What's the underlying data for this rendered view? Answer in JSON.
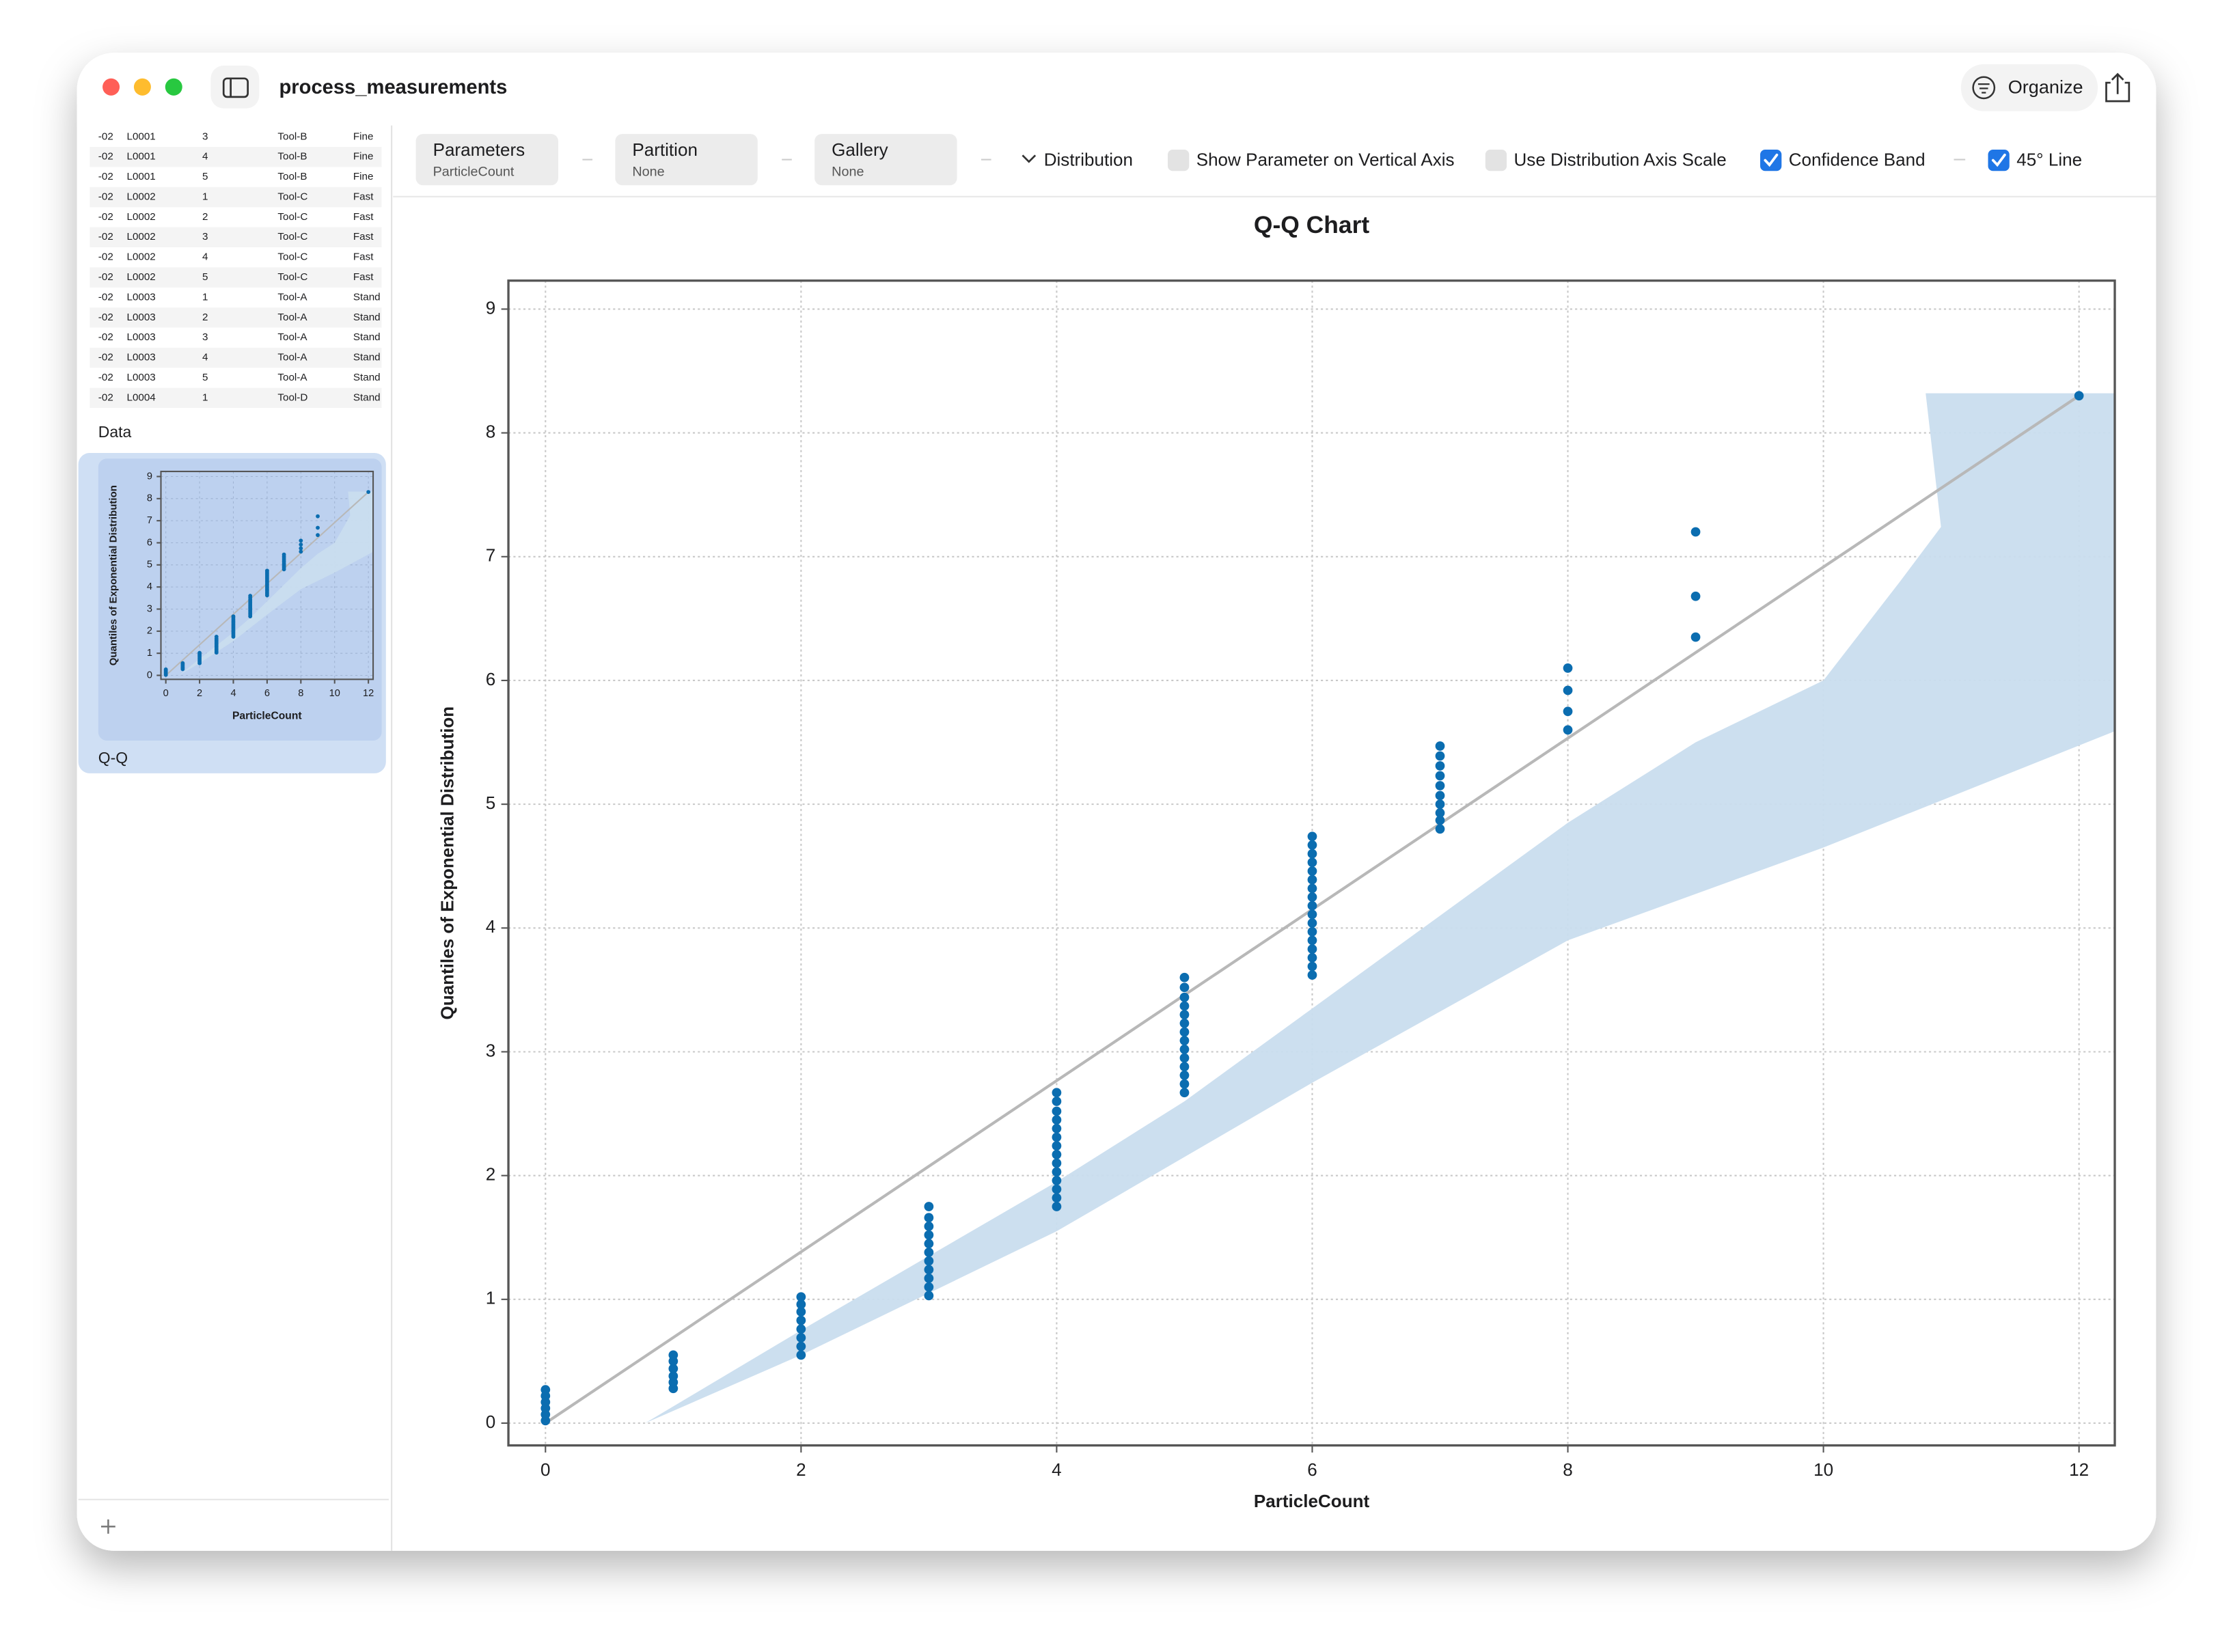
{
  "window": {
    "title": "process_measurements",
    "organize": "Organize"
  },
  "toolbar": {
    "popups": [
      {
        "label": "Parameters",
        "value": "ParticleCount"
      },
      {
        "label": "Partition",
        "value": "None"
      },
      {
        "label": "Gallery",
        "value": "None"
      }
    ],
    "distribution": "Distribution",
    "checkboxes": [
      {
        "label": "Show Parameter on Vertical Axis",
        "checked": false
      },
      {
        "label": "Use Distribution Axis Scale",
        "checked": false
      },
      {
        "label": "Confidence Band",
        "checked": true
      },
      {
        "label": "45° Line",
        "checked": true
      }
    ]
  },
  "sidebar": {
    "table": {
      "rows": [
        [
          "-02",
          "L0001",
          "3",
          "Tool-B",
          "Fine"
        ],
        [
          "-02",
          "L0001",
          "4",
          "Tool-B",
          "Fine"
        ],
        [
          "-02",
          "L0001",
          "5",
          "Tool-B",
          "Fine"
        ],
        [
          "-02",
          "L0002",
          "1",
          "Tool-C",
          "Fast"
        ],
        [
          "-02",
          "L0002",
          "2",
          "Tool-C",
          "Fast"
        ],
        [
          "-02",
          "L0002",
          "3",
          "Tool-C",
          "Fast"
        ],
        [
          "-02",
          "L0002",
          "4",
          "Tool-C",
          "Fast"
        ],
        [
          "-02",
          "L0002",
          "5",
          "Tool-C",
          "Fast"
        ],
        [
          "-02",
          "L0003",
          "1",
          "Tool-A",
          "Stand"
        ],
        [
          "-02",
          "L0003",
          "2",
          "Tool-A",
          "Stand"
        ],
        [
          "-02",
          "L0003",
          "3",
          "Tool-A",
          "Stand"
        ],
        [
          "-02",
          "L0003",
          "4",
          "Tool-A",
          "Stand"
        ],
        [
          "-02",
          "L0003",
          "5",
          "Tool-A",
          "Stand"
        ],
        [
          "-02",
          "L0004",
          "1",
          "Tool-D",
          "Stand"
        ]
      ]
    },
    "items": [
      {
        "label": "Data",
        "selected": false
      },
      {
        "label": "Q-Q",
        "selected": true
      }
    ]
  },
  "chart_data": {
    "type": "scatter",
    "title": "Q-Q Chart",
    "x_label": "ParticleCount",
    "y_label": "Quantiles of Exponential Distribution",
    "color": "#0b6db0",
    "x": [
      0,
      0,
      0,
      0,
      0,
      0,
      1,
      1,
      1,
      1,
      1,
      1,
      2,
      2,
      2,
      2,
      2,
      2,
      2,
      2,
      3,
      3,
      3,
      3,
      3,
      3,
      3,
      3,
      3,
      3,
      3,
      4,
      4,
      4,
      4,
      4,
      4,
      4,
      4,
      4,
      4,
      4,
      4,
      4,
      4,
      5,
      5,
      5,
      5,
      5,
      5,
      5,
      5,
      5,
      5,
      5,
      5,
      5,
      5,
      6,
      6,
      6,
      6,
      6,
      6,
      6,
      6,
      6,
      6,
      6,
      6,
      6,
      6,
      6,
      6,
      6,
      7,
      7,
      7,
      7,
      7,
      7,
      7,
      7,
      7,
      7,
      8,
      8,
      8,
      8,
      9,
      9,
      9,
      12
    ],
    "values": [
      0.02,
      0.07,
      0.12,
      0.17,
      0.22,
      0.27,
      0.28,
      0.33,
      0.38,
      0.44,
      0.5,
      0.55,
      0.55,
      0.62,
      0.69,
      0.76,
      0.83,
      0.9,
      0.96,
      1.02,
      1.03,
      1.1,
      1.17,
      1.24,
      1.31,
      1.38,
      1.45,
      1.52,
      1.59,
      1.66,
      1.75,
      1.75,
      1.82,
      1.89,
      1.96,
      2.03,
      2.1,
      2.17,
      2.24,
      2.31,
      2.38,
      2.45,
      2.52,
      2.6,
      2.67,
      2.67,
      2.74,
      2.81,
      2.88,
      2.95,
      3.02,
      3.09,
      3.16,
      3.23,
      3.3,
      3.37,
      3.44,
      3.52,
      3.6,
      3.62,
      3.69,
      3.76,
      3.83,
      3.9,
      3.97,
      4.04,
      4.11,
      4.18,
      4.25,
      4.32,
      4.39,
      4.46,
      4.53,
      4.6,
      4.67,
      4.74,
      4.8,
      4.87,
      4.93,
      5.0,
      5.07,
      5.15,
      5.23,
      5.31,
      5.39,
      5.47,
      5.6,
      5.75,
      5.92,
      6.1,
      6.35,
      6.68,
      7.2,
      8.3
    ],
    "xlim": [
      -0.29,
      12.28
    ],
    "ylim": [
      -0.18,
      9.23
    ],
    "xticks": [
      0,
      2,
      4,
      6,
      8,
      10,
      12
    ],
    "yticks": [
      0,
      1,
      2,
      3,
      4,
      5,
      6,
      7,
      8,
      9
    ],
    "grid": true,
    "reference_line": {
      "x": [
        0,
        12
      ],
      "y": [
        0,
        8.3
      ],
      "color": "#b8b8b8"
    },
    "confidence_band": {
      "color": "#c9ddee",
      "upper": {
        "x": [
          0.78,
          2,
          3,
          4,
          5,
          6,
          7,
          8,
          9,
          10,
          10.6,
          10.92,
          10.8,
          12.28
        ],
        "y": [
          0,
          0.75,
          1.35,
          1.95,
          2.6,
          3.35,
          4.1,
          4.85,
          5.5,
          6.0,
          6.8,
          7.24,
          8.32,
          8.32
        ]
      },
      "lower": {
        "x": [
          12.28,
          10,
          8,
          6,
          4,
          2,
          0.78
        ],
        "y": [
          5.59,
          4.65,
          3.9,
          2.75,
          1.55,
          0.55,
          0
        ]
      }
    }
  }
}
